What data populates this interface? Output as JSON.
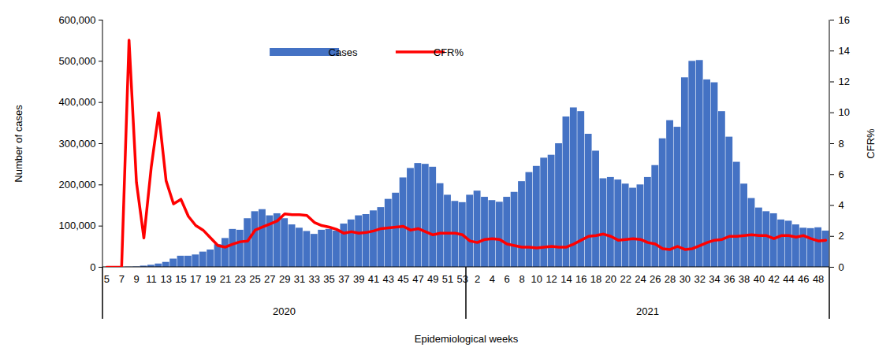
{
  "chart_data": {
    "type": "bar",
    "x_label": "Epidemiological weeks",
    "y_label": "Number of cases",
    "y2_label": "CFR%",
    "categories": [
      "5",
      null,
      "7",
      null,
      "9",
      null,
      "11",
      null,
      "13",
      null,
      "15",
      null,
      "17",
      null,
      "19",
      null,
      "21",
      null,
      "23",
      null,
      "25",
      null,
      "27",
      null,
      "29",
      null,
      "31",
      null,
      "33",
      null,
      "35",
      null,
      "37",
      null,
      "39",
      null,
      "41",
      null,
      "43",
      null,
      "45",
      null,
      "47",
      null,
      "49",
      null,
      "51",
      null,
      "53",
      null,
      "2",
      null,
      "4",
      null,
      "6",
      null,
      "8",
      null,
      "10",
      null,
      "12",
      null,
      "14",
      null,
      "16",
      null,
      "18",
      null,
      "20",
      null,
      "22",
      null,
      "24",
      null,
      "26",
      null,
      "28",
      null,
      "30",
      null,
      "32",
      null,
      "34",
      null,
      "36",
      null,
      "38",
      null,
      "40",
      null,
      "42",
      null,
      "44",
      null,
      "46",
      null,
      "48",
      null
    ],
    "year_groups": [
      {
        "name": "2020",
        "count": 49
      },
      {
        "name": "2021",
        "count": 49
      }
    ],
    "series": [
      {
        "name": "Cases",
        "type": "bar",
        "color": "#4472C4",
        "values": [
          0,
          0,
          0,
          500,
          1000,
          3000,
          5000,
          8000,
          12000,
          20000,
          27000,
          27000,
          30000,
          37000,
          42000,
          55000,
          70000,
          92000,
          90000,
          118000,
          135000,
          140000,
          125000,
          130000,
          118000,
          103000,
          95000,
          87000,
          80000,
          90000,
          92000,
          88000,
          105000,
          115000,
          125000,
          128000,
          137000,
          145000,
          165000,
          180000,
          217000,
          240000,
          252000,
          250000,
          243000,
          203000,
          175000,
          160000,
          157000,
          175000,
          185000,
          170000,
          162000,
          158000,
          170000,
          182000,
          208000,
          230000,
          245000,
          265000,
          272000,
          300000,
          365000,
          387000,
          378000,
          323000,
          282000,
          215000,
          218000,
          212000,
          202000,
          192000,
          200000,
          218000,
          247000,
          312000,
          356000,
          340000,
          460000,
          500000,
          502000,
          455000,
          448000,
          378000,
          316000,
          255000,
          202000,
          167000,
          144000,
          135000,
          130000,
          115000,
          112000,
          103000,
          95000,
          94000,
          96000,
          88000
        ]
      },
      {
        "name": "CFR%",
        "type": "line",
        "color": "#FF0000",
        "axis": "y2",
        "values": [
          0,
          0,
          0,
          14.7,
          5.5,
          1.9,
          6.5,
          10,
          5.6,
          4.1,
          4.4,
          3.3,
          2.7,
          2.4,
          1.9,
          1.4,
          1.3,
          1.5,
          1.65,
          1.7,
          2.4,
          2.6,
          2.8,
          3.0,
          3.45,
          3.4,
          3.4,
          3.35,
          2.9,
          2.7,
          2.6,
          2.45,
          2.2,
          2.3,
          2.2,
          2.25,
          2.35,
          2.5,
          2.55,
          2.6,
          2.65,
          2.4,
          2.5,
          2.3,
          2.1,
          2.2,
          2.2,
          2.2,
          2.1,
          1.7,
          1.6,
          1.8,
          1.85,
          1.8,
          1.5,
          1.4,
          1.3,
          1.3,
          1.25,
          1.3,
          1.35,
          1.3,
          1.3,
          1.5,
          1.75,
          2.0,
          2.05,
          2.15,
          2.0,
          1.75,
          1.8,
          1.85,
          1.8,
          1.6,
          1.5,
          1.2,
          1.15,
          1.35,
          1.15,
          1.2,
          1.4,
          1.6,
          1.75,
          1.8,
          2.0,
          2.0,
          2.05,
          2.1,
          2.05,
          2.05,
          1.85,
          2.05,
          2.05,
          1.95,
          2.05,
          1.85,
          1.7,
          1.75
        ]
      }
    ],
    "ylim": [
      0,
      600000
    ],
    "yticks": [
      0,
      {
        "value": 100000,
        "label": "100,000"
      },
      {
        "value": 200000,
        "label": "200,000"
      },
      {
        "value": 300000,
        "label": "300,000"
      },
      {
        "value": 400000,
        "label": "400,000"
      },
      {
        "value": 500000,
        "label": "500,000"
      },
      {
        "value": 600000,
        "label": "600,000"
      }
    ],
    "y2lim": [
      0,
      16
    ],
    "y2ticks": [
      0,
      2,
      4,
      6,
      8,
      10,
      12,
      14,
      16
    ],
    "legend": "top",
    "grid": false
  }
}
